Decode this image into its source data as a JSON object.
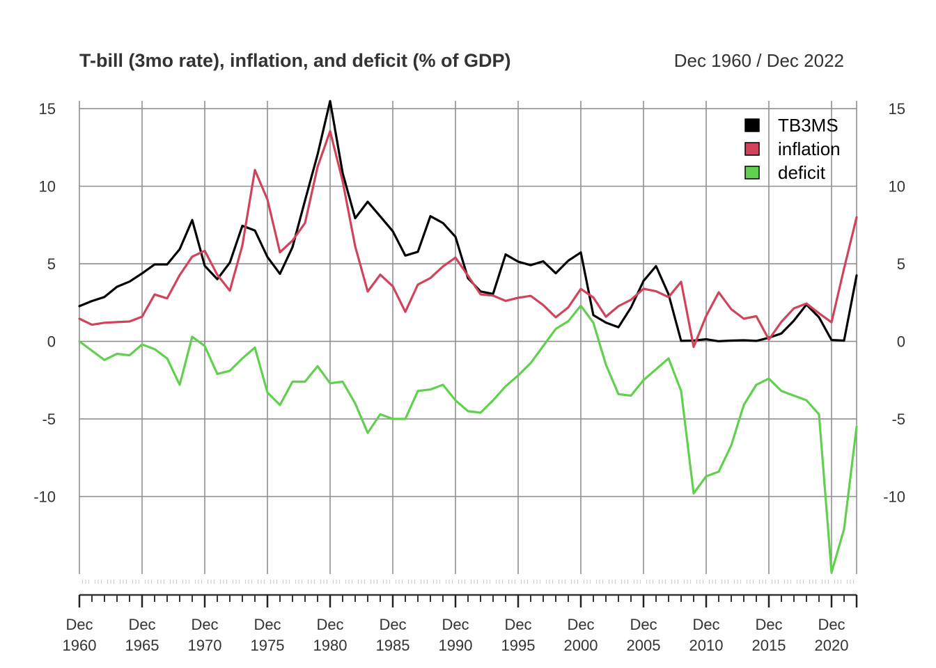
{
  "chart_data": {
    "type": "line",
    "title": "T-bill (3mo rate), inflation, and deficit (% of GDP)",
    "date_range": "Dec 1960 / Dec 2022",
    "x": [
      1960,
      1961,
      1962,
      1963,
      1964,
      1965,
      1966,
      1967,
      1968,
      1969,
      1970,
      1971,
      1972,
      1973,
      1974,
      1975,
      1976,
      1977,
      1978,
      1979,
      1980,
      1981,
      1982,
      1983,
      1984,
      1985,
      1986,
      1987,
      1988,
      1989,
      1990,
      1991,
      1992,
      1993,
      1994,
      1995,
      1996,
      1997,
      1998,
      1999,
      2000,
      2001,
      2002,
      2003,
      2004,
      2005,
      2006,
      2007,
      2008,
      2009,
      2010,
      2011,
      2012,
      2013,
      2014,
      2015,
      2016,
      2017,
      2018,
      2019,
      2020,
      2021,
      2022
    ],
    "x_tick_values": [
      1960,
      1965,
      1970,
      1975,
      1980,
      1985,
      1990,
      1995,
      2000,
      2005,
      2010,
      2015,
      2020
    ],
    "x_tick_labels": [
      [
        "Dec",
        "1960"
      ],
      [
        "Dec",
        "1965"
      ],
      [
        "Dec",
        "1970"
      ],
      [
        "Dec",
        "1975"
      ],
      [
        "Dec",
        "1980"
      ],
      [
        "Dec",
        "1985"
      ],
      [
        "Dec",
        "1990"
      ],
      [
        "Dec",
        "1995"
      ],
      [
        "Dec",
        "2000"
      ],
      [
        "Dec",
        "2005"
      ],
      [
        "Dec",
        "2010"
      ],
      [
        "Dec",
        "2015"
      ],
      [
        "Dec",
        "2020"
      ]
    ],
    "y_ticks": [
      15,
      10,
      5,
      0,
      -5,
      -10
    ],
    "y_tick_labels": [
      "15",
      "10",
      "5",
      "0",
      "-5",
      "-10"
    ],
    "ylim": [
      -15.0,
      15.5
    ],
    "grid": true,
    "legend_position": "top-right",
    "series": [
      {
        "name": "TB3MS",
        "color": "#000000",
        "values": [
          2.27,
          2.6,
          2.86,
          3.52,
          3.85,
          4.38,
          4.96,
          4.96,
          5.94,
          7.82,
          4.87,
          4.01,
          5.07,
          7.45,
          7.15,
          5.44,
          4.35,
          6.07,
          9.08,
          12.04,
          15.49,
          10.85,
          7.94,
          9.0,
          8.06,
          7.1,
          5.53,
          5.77,
          8.07,
          7.63,
          6.74,
          4.07,
          3.22,
          3.06,
          5.6,
          5.14,
          4.91,
          5.16,
          4.39,
          5.2,
          5.73,
          1.69,
          1.21,
          0.91,
          2.18,
          3.89,
          4.85,
          3.03,
          0.03,
          0.05,
          0.14,
          0.01,
          0.05,
          0.07,
          0.03,
          0.23,
          0.51,
          1.34,
          2.37,
          1.55,
          0.09,
          0.05,
          4.25
        ]
      },
      {
        "name": "inflation",
        "color": "#d1435b",
        "values": [
          1.46,
          1.07,
          1.2,
          1.24,
          1.28,
          1.59,
          3.02,
          2.77,
          4.27,
          5.46,
          5.84,
          4.29,
          3.27,
          6.18,
          11.05,
          9.14,
          5.74,
          6.5,
          7.63,
          11.25,
          13.55,
          10.33,
          6.13,
          3.21,
          4.3,
          3.55,
          1.9,
          3.66,
          4.08,
          4.83,
          5.4,
          4.23,
          3.03,
          2.95,
          2.61,
          2.81,
          2.93,
          2.34,
          1.55,
          2.19,
          3.38,
          2.83,
          1.59,
          2.27,
          2.68,
          3.39,
          3.23,
          2.85,
          3.84,
          -0.36,
          1.64,
          3.16,
          2.07,
          1.46,
          1.62,
          0.12,
          1.26,
          2.13,
          2.44,
          1.81,
          1.23,
          4.7,
          8.0
        ]
      },
      {
        "name": "deficit",
        "color": "#61d04f",
        "values": [
          0.0,
          -0.6,
          -1.2,
          -0.8,
          -0.9,
          -0.2,
          -0.5,
          -1.1,
          -2.8,
          0.3,
          -0.3,
          -2.1,
          -1.9,
          -1.1,
          -0.4,
          -3.3,
          -4.1,
          -2.6,
          -2.6,
          -1.6,
          -2.7,
          -2.6,
          -4.0,
          -5.9,
          -4.7,
          -5.0,
          -5.0,
          -3.2,
          -3.1,
          -2.8,
          -3.8,
          -4.5,
          -4.6,
          -3.8,
          -2.9,
          -2.2,
          -1.4,
          -0.3,
          0.8,
          1.3,
          2.3,
          1.2,
          -1.5,
          -3.4,
          -3.5,
          -2.5,
          -1.8,
          -1.1,
          -3.2,
          -9.8,
          -8.7,
          -8.4,
          -6.7,
          -4.1,
          -2.8,
          -2.4,
          -3.2,
          -3.5,
          -3.8,
          -4.7,
          -14.9,
          -12.1,
          -5.5
        ]
      }
    ]
  }
}
